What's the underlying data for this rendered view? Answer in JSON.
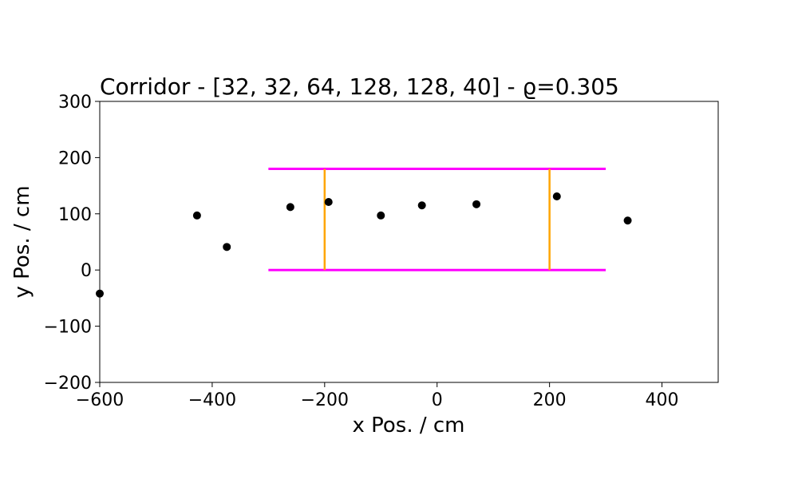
{
  "chart_data": {
    "type": "scatter",
    "title": "Corridor - [32, 32, 64, 128, 128, 40] - ϱ=0.305",
    "xlabel": "x Pos. / cm",
    "ylabel": "y Pos. / cm",
    "xlim": [
      -600,
      500
    ],
    "ylim": [
      -200,
      300
    ],
    "xticks": [
      -600,
      -400,
      -200,
      0,
      200,
      400
    ],
    "xtick_labels": [
      "−600",
      "−400",
      "−200",
      "0",
      "200",
      "400"
    ],
    "yticks": [
      -200,
      -100,
      0,
      100,
      200,
      300
    ],
    "ytick_labels": [
      "−200",
      "−100",
      "0",
      "100",
      "200",
      "300"
    ],
    "grid": false,
    "points": {
      "color": "#000000",
      "x": [
        -600,
        -427,
        -374,
        -261,
        -193,
        -100,
        -27,
        70,
        213,
        339
      ],
      "y": [
        -42,
        97,
        41,
        112,
        121,
        97,
        115,
        117,
        131,
        88
      ]
    },
    "corridor_walls": {
      "color": "#ff00ff",
      "lines": [
        {
          "x": [
            -300,
            300
          ],
          "y": [
            180,
            180
          ]
        },
        {
          "x": [
            -300,
            300
          ],
          "y": [
            0,
            0
          ]
        }
      ]
    },
    "measurement_lines": {
      "color": "#ffa500",
      "lines": [
        {
          "x": [
            -200,
            -200
          ],
          "y": [
            0,
            180
          ]
        },
        {
          "x": [
            200,
            200
          ],
          "y": [
            0,
            180
          ]
        }
      ]
    }
  }
}
